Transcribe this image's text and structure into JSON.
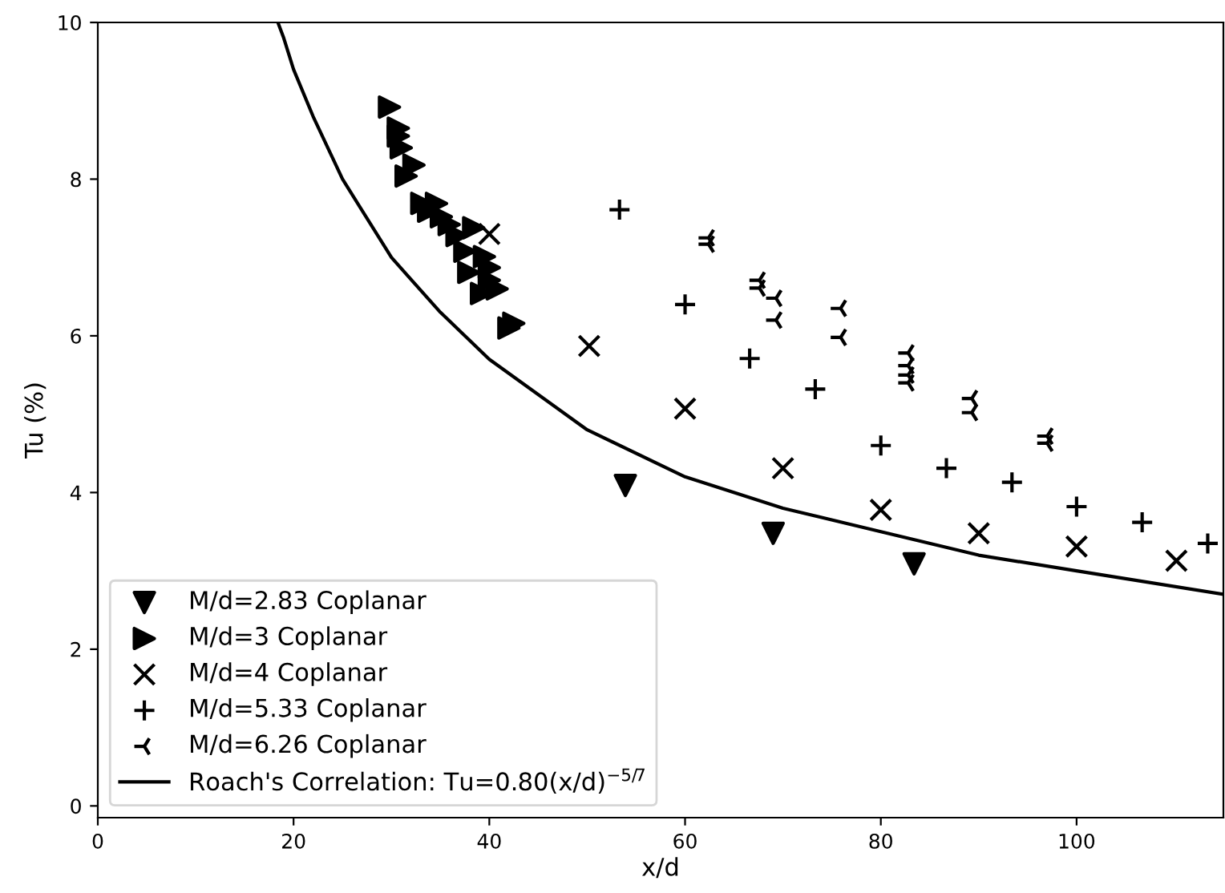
{
  "chart_data": {
    "type": "scatter",
    "xlabel": "x/d",
    "ylabel": "Tu (%)",
    "xlim": [
      0,
      115
    ],
    "ylim": [
      -0.15,
      10
    ],
    "xticks": [
      0,
      20,
      40,
      60,
      80,
      100
    ],
    "yticks": [
      0,
      2,
      4,
      6,
      8,
      10
    ],
    "grid": false,
    "legend": "bottom left",
    "series": [
      {
        "name": "M/d=2.83 Coplanar",
        "color": "#000000",
        "marker": "triangle_down",
        "x": [
          53.9,
          69.0,
          83.4
        ],
        "values": [
          4.09,
          3.48,
          3.09
        ]
      },
      {
        "name": "M/d=3 Coplanar",
        "color": "#000000",
        "marker": "triangle_right",
        "x": [
          29.8,
          30.7,
          30.7,
          31.0,
          32.3,
          31.5,
          33.1,
          34.6,
          33.8,
          35.9,
          35.1,
          38.4,
          36.7,
          37.5,
          39.5,
          40.0,
          37.9,
          40.0,
          39.2,
          40.8,
          42.5,
          42.0
        ],
        "values": [
          8.92,
          8.65,
          8.55,
          8.4,
          8.18,
          8.04,
          7.69,
          7.69,
          7.59,
          7.42,
          7.52,
          7.38,
          7.28,
          7.08,
          7.01,
          6.87,
          6.81,
          6.71,
          6.54,
          6.6,
          6.16,
          6.1
        ]
      },
      {
        "name": "M/d=4 Coplanar",
        "color": "#000000",
        "marker": "x",
        "x": [
          40.0,
          50.2,
          60.0,
          70.0,
          80.0,
          90.0,
          100.0,
          110.2
        ],
        "values": [
          7.3,
          5.87,
          5.07,
          4.31,
          3.78,
          3.48,
          3.31,
          3.13
        ]
      },
      {
        "name": "M/d=5.33 Coplanar",
        "color": "#000000",
        "marker": "plus",
        "x": [
          53.3,
          60.0,
          66.6,
          73.3,
          80.0,
          86.7,
          93.4,
          100.0,
          106.7,
          113.4
        ],
        "values": [
          7.61,
          6.4,
          5.71,
          5.32,
          4.6,
          4.31,
          4.13,
          3.82,
          3.62,
          3.35
        ]
      },
      {
        "name": "M/d=6.26 Coplanar",
        "color": "#000000",
        "x": [
          62.4,
          62.4,
          67.6,
          67.6,
          69.3,
          69.3,
          75.9,
          75.9,
          82.8,
          82.8,
          82.8,
          82.8,
          89.3,
          89.3,
          97.0,
          97.0
        ],
        "values": [
          7.25,
          7.17,
          6.71,
          6.61,
          6.48,
          6.2,
          6.35,
          5.98,
          5.78,
          5.62,
          5.5,
          5.4,
          5.2,
          5.02,
          4.72,
          4.63
        ]
      },
      {
        "name": "Roach's Correlation: Tu=0.80(x/d)$^{−5/7}$",
        "type": "line",
        "color": "#000000",
        "line_style": "solid",
        "marker": "none",
        "x": [
          18.4,
          19,
          20,
          22,
          25,
          30,
          35,
          40,
          50,
          60,
          70,
          80,
          90,
          100,
          115
        ],
        "values": [
          10.0,
          9.8,
          9.4,
          8.8,
          8.0,
          7.0,
          6.3,
          5.7,
          4.8,
          4.2,
          3.8,
          3.5,
          3.2,
          3.0,
          2.7
        ]
      }
    ]
  }
}
